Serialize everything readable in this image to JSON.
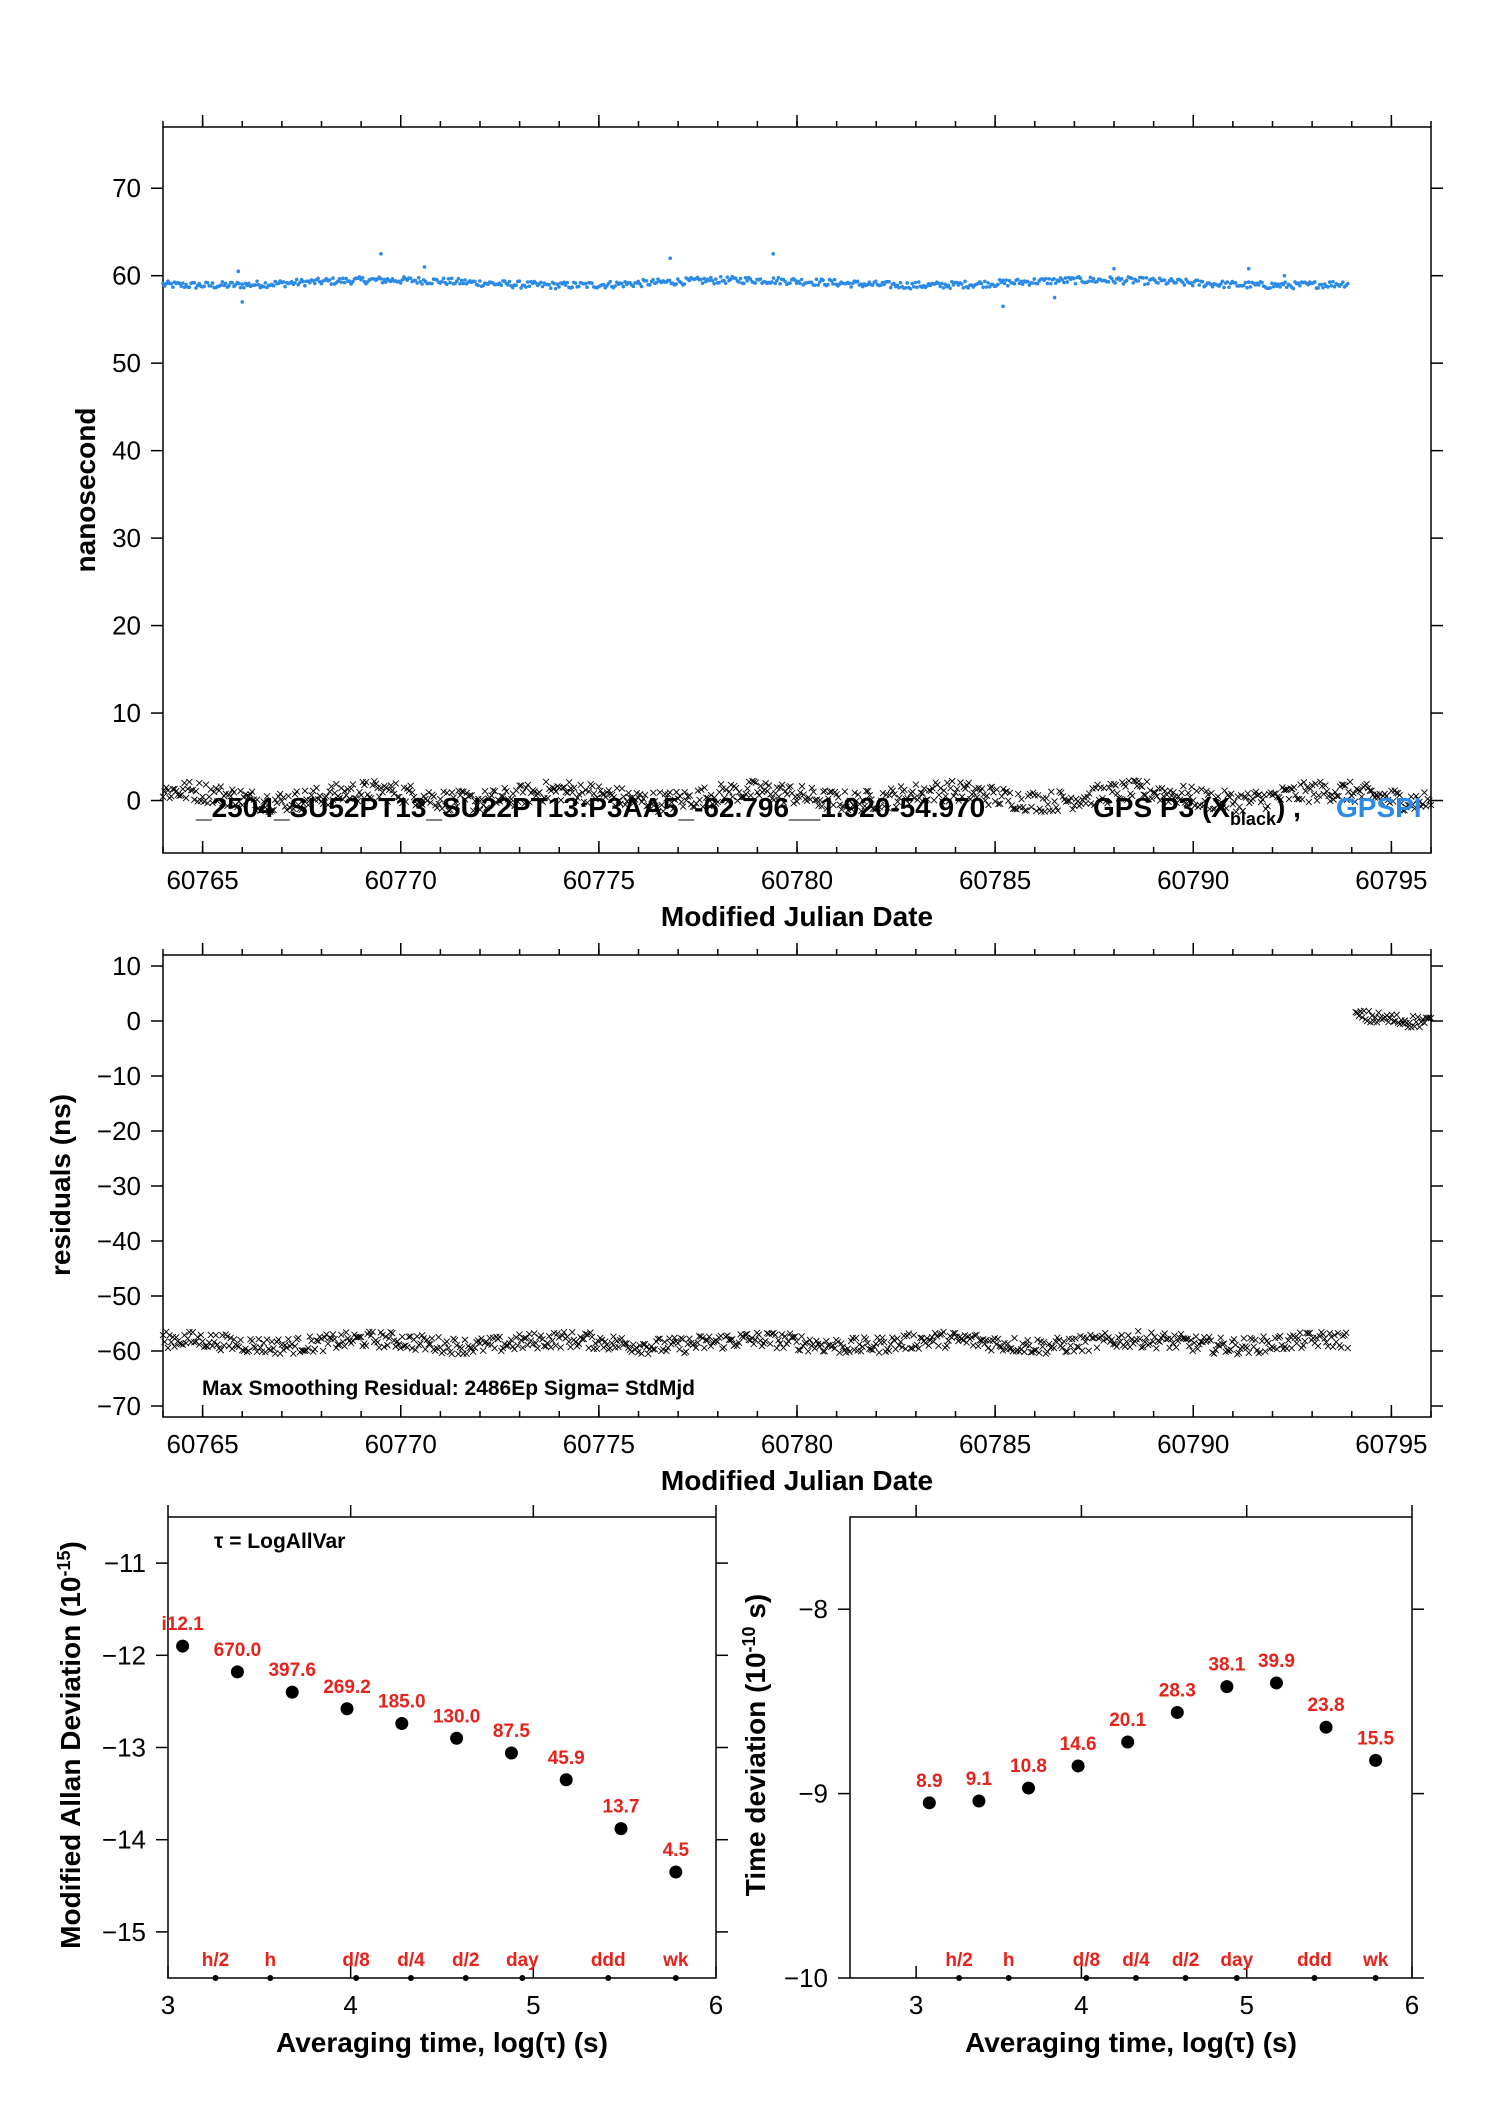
{
  "colors": {
    "blue": "#2a8ae6",
    "black": "#000000",
    "red": "#e8221a"
  },
  "chart_data": [
    {
      "type": "scatter",
      "xlabel": "Modified Julian Date",
      "ylabel": "nanosecond",
      "xlim": [
        60764,
        60796
      ],
      "ylim": [
        -6,
        77
      ],
      "xticks": [
        "60765",
        "60770",
        "60775",
        "60780",
        "60785",
        "60790",
        "60795"
      ],
      "yticks": [
        "0",
        "10",
        "20",
        "30",
        "40",
        "50",
        "60",
        "70"
      ],
      "annotation": "_2504_SU52PT13_SU22PT13:P3AA5_-62.796__1.920-54.970",
      "legend_main": "GPS P3 (X",
      "legend_sub": "black",
      "legend_tail": ") ,",
      "legend_blue": "GPSPI",
      "series": [
        {
          "marker": "dot",
          "color": "#2a8ae6",
          "x_range": [
            60764,
            60793.9
          ],
          "level": 59.2,
          "spread": 0.4,
          "outliers": [
            [
              60766.0,
              57.0
            ],
            [
              60765.9,
              60.5
            ],
            [
              60769.5,
              62.5
            ],
            [
              60770.6,
              61.0
            ],
            [
              60776.8,
              62.0
            ],
            [
              60779.4,
              62.5
            ],
            [
              60785.2,
              56.5
            ],
            [
              60786.5,
              57.5
            ],
            [
              60788.0,
              60.8
            ],
            [
              60791.4,
              60.8
            ],
            [
              60792.3,
              60.0
            ]
          ]
        },
        {
          "marker": "x",
          "color": "#000000",
          "x_range": [
            60764,
            60796
          ],
          "level": 0.5,
          "spread": 1.2
        }
      ]
    },
    {
      "type": "scatter",
      "xlabel": "Modified Julian Date",
      "ylabel": "residuals (ns)",
      "xlim": [
        60764,
        60796
      ],
      "ylim": [
        -72,
        12
      ],
      "xticks": [
        "60765",
        "60770",
        "60775",
        "60780",
        "60785",
        "60790",
        "60795"
      ],
      "yticks": [
        "10",
        "0",
        "−10",
        "−20",
        "−30",
        "−40",
        "−50",
        "−60",
        "−70"
      ],
      "annotation": "Max Smoothing Residual: 2486Ep  Sigma= StdMjd",
      "series": [
        {
          "marker": "x",
          "color": "#000000",
          "x_range": [
            60764,
            60793.9
          ],
          "level": -58.5,
          "spread": 1.5
        },
        {
          "marker": "x",
          "color": "#000000",
          "x_range": [
            60794.1,
            60796
          ],
          "level": 0.5,
          "spread": 1.2
        }
      ]
    },
    {
      "type": "scatter",
      "xlabel": "Averaging time, log(τ) (s)",
      "ylabel": "Modified Allan Deviation (10",
      "ylabel_sup": "-15",
      "ylabel_tail": ")",
      "xlim": [
        3,
        6
      ],
      "ylim": [
        -15.5,
        -10.5
      ],
      "xticks": [
        "3",
        "4",
        "5",
        "6"
      ],
      "yticks": [
        "−11",
        "−12",
        "−13",
        "−14",
        "−15"
      ],
      "annotation": "τ = LogAllVar",
      "x": [
        3.08,
        3.38,
        3.68,
        3.98,
        4.28,
        4.58,
        4.88,
        5.18,
        5.48,
        5.78
      ],
      "y": [
        -11.9,
        -12.18,
        -12.4,
        -12.58,
        -12.74,
        -12.9,
        -13.06,
        -13.35,
        -13.88,
        -14.35
      ],
      "labels": [
        "i12.1",
        "670.0",
        "397.6",
        "269.2",
        "185.0",
        "130.0",
        "87.5",
        "45.9",
        "13.7",
        "4.5"
      ],
      "markers": [
        {
          "label": "h/2",
          "x": 3.26
        },
        {
          "label": "h",
          "x": 3.56
        },
        {
          "label": "d/8",
          "x": 4.03
        },
        {
          "label": "d/4",
          "x": 4.33
        },
        {
          "label": "d/2",
          "x": 4.63
        },
        {
          "label": "day",
          "x": 4.94
        },
        {
          "label": "ddd",
          "x": 5.41
        },
        {
          "label": "wk",
          "x": 5.78
        }
      ]
    },
    {
      "type": "scatter",
      "xlabel": "Averaging time, log(τ) (s)",
      "ylabel": "Time deviation (10",
      "ylabel_sup": "-10",
      "ylabel_tail": " s)",
      "xlim": [
        2.6,
        6
      ],
      "ylim": [
        -10,
        -7.5
      ],
      "xticks": [
        "3",
        "4",
        "5",
        "6"
      ],
      "yticks": [
        "−8",
        "−9",
        "−10"
      ],
      "x": [
        3.08,
        3.38,
        3.68,
        3.98,
        4.28,
        4.58,
        4.88,
        5.18,
        5.48,
        5.78
      ],
      "y": [
        -9.05,
        -9.04,
        -8.97,
        -8.85,
        -8.72,
        -8.56,
        -8.42,
        -8.4,
        -8.64,
        -8.82
      ],
      "labels": [
        "8.9",
        "9.1",
        "10.8",
        "14.6",
        "20.1",
        "28.3",
        "38.1",
        "39.9",
        "23.8",
        "15.5"
      ],
      "markers": [
        {
          "label": "h/2",
          "x": 3.26
        },
        {
          "label": "h",
          "x": 3.56
        },
        {
          "label": "d/8",
          "x": 4.03
        },
        {
          "label": "d/4",
          "x": 4.33
        },
        {
          "label": "d/2",
          "x": 4.63
        },
        {
          "label": "day",
          "x": 4.94
        },
        {
          "label": "ddd",
          "x": 5.41
        },
        {
          "label": "wk",
          "x": 5.78
        }
      ]
    }
  ]
}
